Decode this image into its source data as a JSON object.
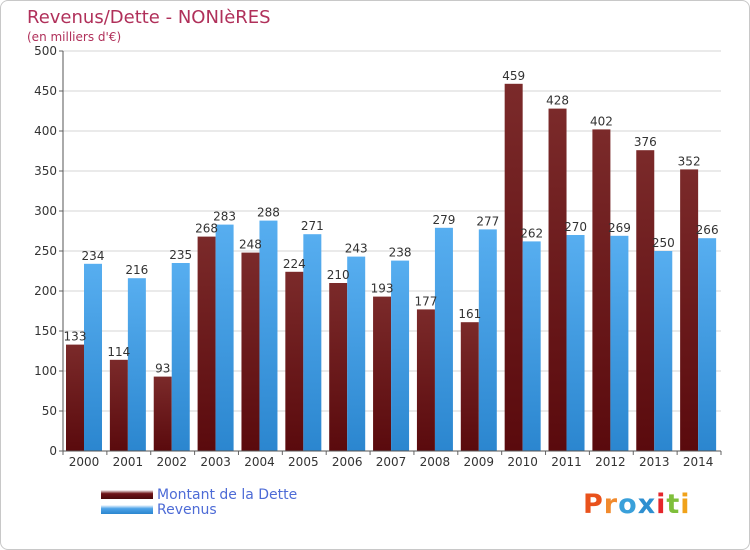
{
  "header": {
    "title": "Revenus/Dette - NONIèRES",
    "subtitle": "(en milliers d'€)"
  },
  "legend": {
    "items": [
      {
        "label": "Montant de la Dette",
        "color": "#6e1418"
      },
      {
        "label": "Revenus",
        "color": "#4da3e8"
      }
    ]
  },
  "branding": {
    "logo_text": "Proxiti",
    "letter_colors": [
      "#e9521c",
      "#f18a2d",
      "#3aa0da",
      "#2e8fd0",
      "#e5262b",
      "#7fbf3b",
      "#f0a21a"
    ]
  },
  "colors": {
    "debt": "#6e1418",
    "revenue": "#4da3e8",
    "title": "#b0305a",
    "grid": "#d6d6d6"
  },
  "chart_data": {
    "type": "bar",
    "title": "Revenus/Dette - NONIèRES",
    "subtitle": "(en milliers d'€)",
    "xlabel": "",
    "ylabel": "",
    "ylim": [
      0,
      500
    ],
    "yticks": [
      0,
      50,
      100,
      150,
      200,
      250,
      300,
      350,
      400,
      450,
      500
    ],
    "grid": true,
    "legend_position": "bottom-left",
    "categories": [
      "2000",
      "2001",
      "2002",
      "2003",
      "2004",
      "2005",
      "2006",
      "2007",
      "2008",
      "2009",
      "2010",
      "2011",
      "2012",
      "2013",
      "2014"
    ],
    "series": [
      {
        "name": "Montant de la Dette",
        "values": [
          133,
          114,
          93,
          268,
          248,
          224,
          210,
          193,
          177,
          161,
          459,
          428,
          402,
          376,
          352
        ]
      },
      {
        "name": "Revenus",
        "values": [
          234,
          216,
          235,
          283,
          288,
          271,
          243,
          238,
          279,
          277,
          262,
          270,
          269,
          250,
          266
        ]
      }
    ]
  }
}
